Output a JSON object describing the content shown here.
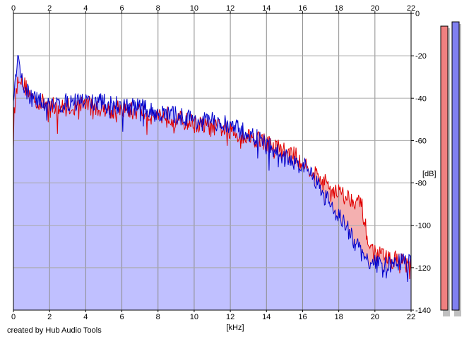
{
  "chart_data": {
    "type": "area",
    "xlabel": "[kHz]",
    "ylabel": "[dB]",
    "xlim": [
      0,
      22
    ],
    "ylim": [
      -140,
      0
    ],
    "x_ticks": [
      0,
      2,
      4,
      6,
      8,
      10,
      12,
      14,
      16,
      18,
      20,
      22
    ],
    "y_ticks": [
      0,
      -20,
      -40,
      -60,
      -80,
      -100,
      -120,
      -140
    ],
    "grid": true,
    "series": [
      {
        "color": "#e00000",
        "fill": "#f4b0b0",
        "envelope": [
          [
            0.0,
            -60
          ],
          [
            0.05,
            -45
          ],
          [
            0.2,
            -35
          ],
          [
            0.3,
            -28
          ],
          [
            0.5,
            -33
          ],
          [
            0.8,
            -36
          ],
          [
            1.0,
            -40
          ],
          [
            1.5,
            -42
          ],
          [
            2.0,
            -43
          ],
          [
            2.5,
            -45
          ],
          [
            3.0,
            -44
          ],
          [
            3.5,
            -44
          ],
          [
            4.0,
            -42
          ],
          [
            4.5,
            -45
          ],
          [
            5.0,
            -44
          ],
          [
            5.5,
            -46
          ],
          [
            6.0,
            -45
          ],
          [
            6.5,
            -46
          ],
          [
            7.0,
            -46
          ],
          [
            7.5,
            -48
          ],
          [
            8.0,
            -48
          ],
          [
            8.5,
            -48
          ],
          [
            9.0,
            -50
          ],
          [
            9.5,
            -51
          ],
          [
            10.0,
            -52
          ],
          [
            10.5,
            -53
          ],
          [
            11.0,
            -54
          ],
          [
            11.5,
            -54
          ],
          [
            12.0,
            -56
          ],
          [
            12.5,
            -57
          ],
          [
            13.0,
            -58
          ],
          [
            13.5,
            -59
          ],
          [
            14.0,
            -61
          ],
          [
            14.5,
            -63
          ],
          [
            15.0,
            -65
          ],
          [
            15.5,
            -67
          ],
          [
            16.0,
            -70
          ],
          [
            16.5,
            -74
          ],
          [
            17.0,
            -78
          ],
          [
            17.5,
            -82
          ],
          [
            18.0,
            -84
          ],
          [
            18.3,
            -86
          ],
          [
            18.6,
            -87
          ],
          [
            19.0,
            -88
          ],
          [
            19.3,
            -92
          ],
          [
            19.5,
            -102
          ],
          [
            19.7,
            -110
          ],
          [
            20.0,
            -113
          ],
          [
            20.5,
            -115
          ],
          [
            21.0,
            -116
          ],
          [
            21.5,
            -117
          ],
          [
            22.0,
            -119
          ]
        ]
      },
      {
        "color": "#0000cc",
        "fill": "#c0c0ff",
        "envelope": [
          [
            0.0,
            -46
          ],
          [
            0.1,
            -32
          ],
          [
            0.25,
            -22
          ],
          [
            0.4,
            -30
          ],
          [
            0.7,
            -36
          ],
          [
            1.0,
            -40
          ],
          [
            1.5,
            -42
          ],
          [
            2.0,
            -42
          ],
          [
            2.5,
            -43
          ],
          [
            3.0,
            -42
          ],
          [
            3.5,
            -42
          ],
          [
            4.0,
            -41
          ],
          [
            4.5,
            -42
          ],
          [
            5.0,
            -42
          ],
          [
            5.5,
            -43
          ],
          [
            6.0,
            -43
          ],
          [
            6.5,
            -44
          ],
          [
            7.0,
            -44
          ],
          [
            7.5,
            -46
          ],
          [
            8.0,
            -47
          ],
          [
            8.5,
            -48
          ],
          [
            9.0,
            -48
          ],
          [
            9.5,
            -49
          ],
          [
            10.0,
            -50
          ],
          [
            10.5,
            -51
          ],
          [
            11.0,
            -51
          ],
          [
            11.5,
            -52
          ],
          [
            12.0,
            -53
          ],
          [
            12.5,
            -55
          ],
          [
            13.0,
            -57
          ],
          [
            13.5,
            -59
          ],
          [
            14.0,
            -62
          ],
          [
            14.5,
            -65
          ],
          [
            15.0,
            -68
          ],
          [
            15.5,
            -70
          ],
          [
            16.0,
            -72
          ],
          [
            16.5,
            -76
          ],
          [
            17.0,
            -82
          ],
          [
            17.5,
            -90
          ],
          [
            18.0,
            -95
          ],
          [
            18.5,
            -102
          ],
          [
            19.0,
            -110
          ],
          [
            19.5,
            -116
          ],
          [
            20.0,
            -118
          ],
          [
            20.5,
            -119
          ],
          [
            21.0,
            -119
          ],
          [
            21.5,
            -117
          ],
          [
            22.0,
            -118
          ]
        ]
      }
    ],
    "level_meters": [
      {
        "color": "#f08080",
        "level_db": -6
      },
      {
        "color": "#8080f0",
        "level_db": -4
      }
    ]
  },
  "footer": {
    "credit": "created by Hub Audio Tools"
  }
}
